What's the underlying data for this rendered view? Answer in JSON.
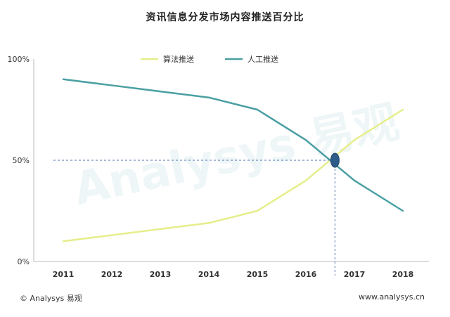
{
  "chart_data": {
    "type": "line",
    "title": "资讯信息分发市场内容推送百分比",
    "categories": [
      "2011",
      "2012",
      "2013",
      "2014",
      "2015",
      "2016",
      "2017",
      "2018"
    ],
    "y_ticks": [
      "100%",
      "50%",
      "0%"
    ],
    "ylim": [
      0,
      100
    ],
    "grid": false,
    "legend": "top-center",
    "series": [
      {
        "name": "算法推送",
        "color": "#e6ee8a",
        "values": [
          10,
          13,
          16,
          19,
          25,
          40,
          60,
          75
        ]
      },
      {
        "name": "人工推送",
        "color": "#4a9fa2",
        "values": [
          90,
          87,
          84,
          81,
          75,
          60,
          40,
          25
        ]
      }
    ],
    "annotation": {
      "x": 2016.6,
      "y": 50,
      "marker_color": "#2e5c8a",
      "line_color": "#4c72b0"
    }
  },
  "footer": {
    "source": "© Analysys 易观",
    "url": "www.analysys.cn"
  },
  "watermark": "Analysys 易观"
}
